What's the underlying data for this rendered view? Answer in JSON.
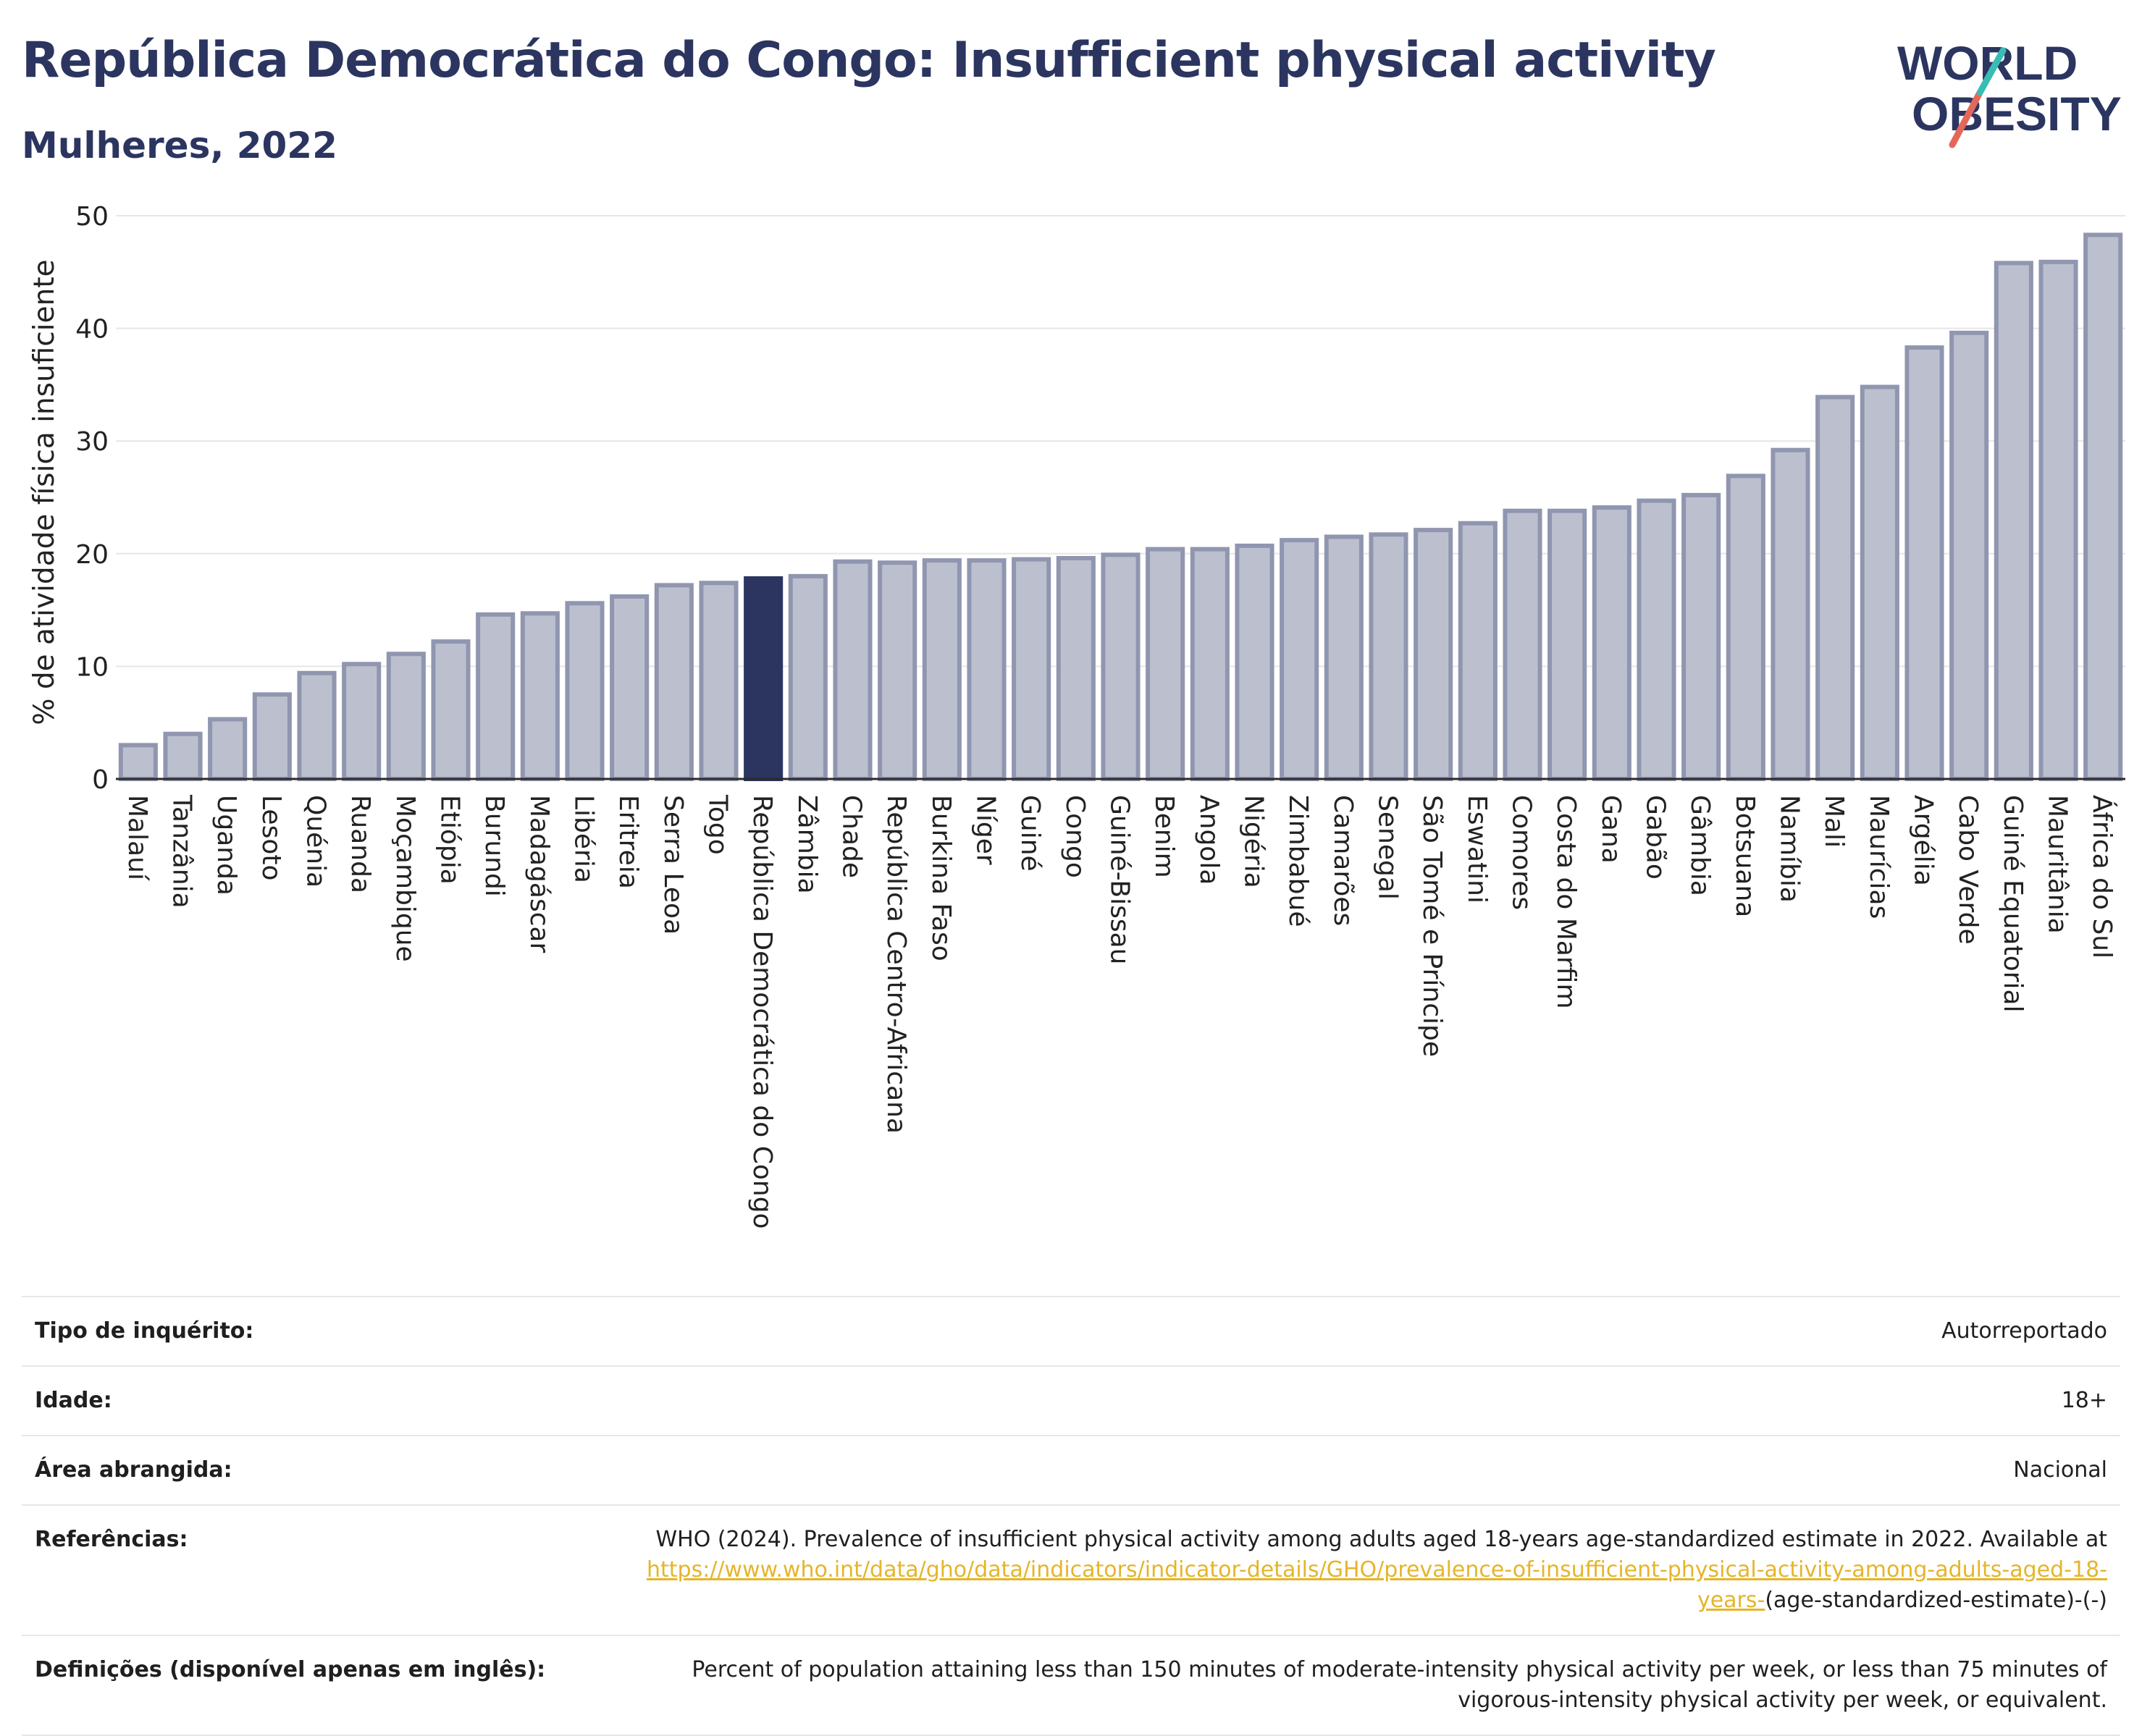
{
  "header": {
    "title": "República Democrática do Congo: Insufficient physical activity",
    "subtitle": "Mulheres, 2022"
  },
  "logo": {
    "line1": "WORLD",
    "line2": "OBESITY"
  },
  "colors": {
    "bar": "#bcc0ce",
    "bar_border": "#9096af",
    "highlight": "#2b3560",
    "title": "#2b3560",
    "link": "#e5b52a"
  },
  "chart_data": {
    "type": "bar",
    "ylabel": "% de atividade física insuficiente",
    "ylim": [
      0,
      50
    ],
    "yticks": [
      0,
      10,
      20,
      30,
      40,
      50
    ],
    "grid": true,
    "highlight": "República Democrática do Congo",
    "categories": [
      "Malauí",
      "Tanzânia",
      "Uganda",
      "Lesoto",
      "Quénia",
      "Ruanda",
      "Moçambique",
      "Etiópia",
      "Burundi",
      "Madagáscar",
      "Libéria",
      "Eritreia",
      "Serra Leoa",
      "Togo",
      "República Democrática do Congo",
      "Zâmbia",
      "Chade",
      "República Centro-Africana",
      "Burkina Faso",
      "Níger",
      "Guiné",
      "Congo",
      "Guiné-Bissau",
      "Benim",
      "Angola",
      "Nigéria",
      "Zimbabué",
      "Camarões",
      "Senegal",
      "São Tomé e Príncipe",
      "Eswatini",
      "Comores",
      "Costa do Marfim",
      "Gana",
      "Gabão",
      "Gâmbia",
      "Botsuana",
      "Namíbia",
      "Mali",
      "Maurícias",
      "Argélia",
      "Cabo Verde",
      "Guiné Equatorial",
      "Mauritânia",
      "África do Sul"
    ],
    "values": [
      3.0,
      4.0,
      5.3,
      7.5,
      9.4,
      10.2,
      11.1,
      12.2,
      14.6,
      14.7,
      15.6,
      16.2,
      17.2,
      17.4,
      17.8,
      18.0,
      19.3,
      19.2,
      19.4,
      19.4,
      19.5,
      19.6,
      19.9,
      20.4,
      20.4,
      20.7,
      21.2,
      21.5,
      21.7,
      22.1,
      22.7,
      23.8,
      23.8,
      24.1,
      24.7,
      25.2,
      26.9,
      29.2,
      33.9,
      34.8,
      38.3,
      39.6,
      45.8,
      45.9,
      48.3
    ]
  },
  "info_table": {
    "survey_type_label": "Tipo de inquérito:",
    "survey_type_value": "Autorreportado",
    "age_label": "Idade:",
    "age_value": "18+",
    "area_label": "Área abrangida:",
    "area_value": "Nacional",
    "references_label": "Referências:",
    "references_text": "WHO (2024). Prevalence of insufficient physical activity among adults aged 18-years age-standardized estimate in 2022. Available at",
    "references_link": "https://www.who.int/data/gho/data/indicators/indicator-details/GHO/prevalence-of-insufficient-physical-activity-among-adults-aged-18-years-",
    "references_suffix": "(age-standardized-estimate)-(-)",
    "definitions_label": "Definições (disponível apenas em inglês):",
    "definitions_value": "Percent of population attaining less than 150 minutes of moderate-intensity physical activity per week, or less than 75 minutes of vigorous-intensity physical activity per week, or equivalent."
  }
}
